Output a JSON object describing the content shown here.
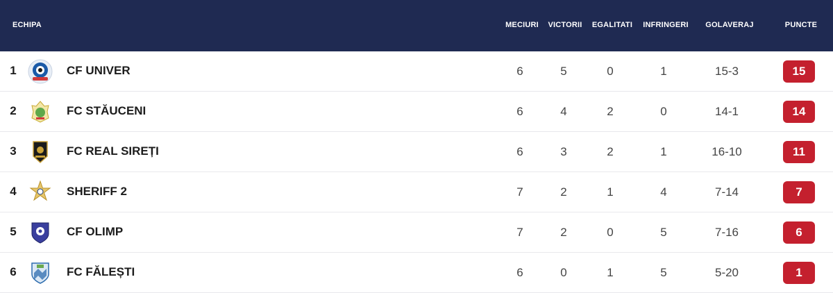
{
  "header": {
    "team": "ECHIPA",
    "matches": "MECIURI",
    "wins": "VICTORII",
    "draws": "EGALITATI",
    "losses": "INFRINGERI",
    "goals": "GOLAVERAJ",
    "points": "PUNCTE"
  },
  "accent_colors": {
    "header_bg": "#1f2a52",
    "points_badge": "#c4202e"
  },
  "rows": [
    {
      "pos": "1",
      "team": "CF UNIVER",
      "logo": "cf-univer-logo-icon",
      "matches": "6",
      "wins": "5",
      "draws": "0",
      "losses": "1",
      "goals": "15-3",
      "points": "15"
    },
    {
      "pos": "2",
      "team": "FC STĂUCENI",
      "logo": "fc-stauceni-logo-icon",
      "matches": "6",
      "wins": "4",
      "draws": "2",
      "losses": "0",
      "goals": "14-1",
      "points": "14"
    },
    {
      "pos": "3",
      "team": "FC REAL SIREȚI",
      "logo": "fc-real-sireti-logo-icon",
      "matches": "6",
      "wins": "3",
      "draws": "2",
      "losses": "1",
      "goals": "16-10",
      "points": "11"
    },
    {
      "pos": "4",
      "team": "SHERIFF 2",
      "logo": "sheriff-logo-icon",
      "matches": "7",
      "wins": "2",
      "draws": "1",
      "losses": "4",
      "goals": "7-14",
      "points": "7"
    },
    {
      "pos": "5",
      "team": "CF OLIMP",
      "logo": "cf-olimp-logo-icon",
      "matches": "7",
      "wins": "2",
      "draws": "0",
      "losses": "5",
      "goals": "7-16",
      "points": "6"
    },
    {
      "pos": "6",
      "team": "FC FĂLEȘTI",
      "logo": "fc-falesti-logo-icon",
      "matches": "6",
      "wins": "0",
      "draws": "1",
      "losses": "5",
      "goals": "5-20",
      "points": "1"
    }
  ]
}
